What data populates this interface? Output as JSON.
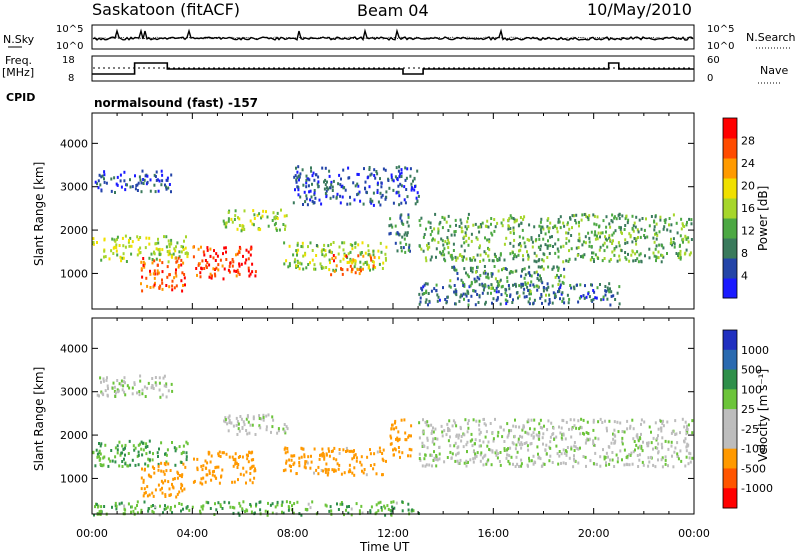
{
  "header": {
    "station": "Saskatoon (fitACF)",
    "beam": "Beam 04",
    "date": "10/May/2010"
  },
  "small_panels": {
    "nsky_label": "N.Sky",
    "nsky_ticks": [
      "10^5",
      "10^0"
    ],
    "nsearch_label": "N.Search",
    "nsearch_ticks": [
      "10^5",
      "10^0"
    ],
    "freq_label_1": "Freq.",
    "freq_label_2": "[MHz]",
    "freq_ticks": [
      "18",
      "8"
    ],
    "nave_label": "Nave",
    "nave_ticks": [
      "60",
      "0"
    ],
    "cpid_label": "CPID",
    "cpid_text": "normalsound (fast) -157"
  },
  "colors": {
    "power_scale": [
      "#1a1aff",
      "#2445a8",
      "#3a7a5c",
      "#4ca843",
      "#a6d62b",
      "#f0e000",
      "#ff9a00",
      "#ff4b00",
      "#ff0000"
    ],
    "velocity_scale": [
      "#2030c0",
      "#2a6ab0",
      "#2e8f4a",
      "#6cc43a",
      "#bdbdbd",
      "#bdbdbd",
      "#ff9900",
      "#ff5500",
      "#ff0000"
    ]
  },
  "chart_data": [
    {
      "type": "heatmap",
      "name": "power",
      "ylabel": "Slant Range [km]",
      "xlabel": "Time UT",
      "x_ticks": [
        "00:00",
        "04:00",
        "08:00",
        "12:00",
        "16:00",
        "20:00",
        "00:00"
      ],
      "x_range_hours": [
        0,
        24
      ],
      "y_ticks": [
        1000,
        2000,
        3000,
        4000
      ],
      "ylim": [
        180,
        4700
      ],
      "colorbar_label": "Power [dB]",
      "colorbar_ticks": [
        "4",
        "8",
        "12",
        "16",
        "20",
        "24",
        "28"
      ],
      "colorbar_range": [
        0,
        30
      ],
      "regions": [
        {
          "t": [
            0.0,
            3.8
          ],
          "r": [
            1300,
            1900
          ],
          "v": 15
        },
        {
          "t": [
            1.9,
            3.7
          ],
          "r": [
            600,
            1400
          ],
          "v": 26
        },
        {
          "t": [
            4.0,
            6.5
          ],
          "r": [
            900,
            1650
          ],
          "v": 28
        },
        {
          "t": [
            0.1,
            3.2
          ],
          "r": [
            2900,
            3400
          ],
          "v": 4
        },
        {
          "t": [
            5.2,
            7.8
          ],
          "r": [
            2000,
            2500
          ],
          "v": 15
        },
        {
          "t": [
            7.6,
            11.7
          ],
          "r": [
            1100,
            1750
          ],
          "v": 14
        },
        {
          "t": [
            9.4,
            11.3
          ],
          "r": [
            1000,
            1450
          ],
          "v": 24
        },
        {
          "t": [
            11.8,
            12.7
          ],
          "r": [
            1500,
            2400
          ],
          "v": 7
        },
        {
          "t": [
            13.0,
            23.9
          ],
          "r": [
            1300,
            2400
          ],
          "v": 11
        },
        {
          "t": [
            14.2,
            18.8
          ],
          "r": [
            500,
            1200
          ],
          "v": 9
        },
        {
          "t": [
            13.0,
            21.0
          ],
          "r": [
            300,
            800
          ],
          "v": 6
        },
        {
          "t": [
            8.0,
            13.0
          ],
          "r": [
            2600,
            3500
          ],
          "v": 4
        }
      ]
    },
    {
      "type": "heatmap",
      "name": "velocity",
      "ylabel": "Slant Range [km]",
      "xlabel": "Time UT",
      "x_ticks": [
        "00:00",
        "04:00",
        "08:00",
        "12:00",
        "16:00",
        "20:00",
        "00:00"
      ],
      "x_range_hours": [
        0,
        24
      ],
      "y_ticks": [
        1000,
        2000,
        3000,
        4000
      ],
      "ylim": [
        180,
        4700
      ],
      "colorbar_label": "Velocity [m s⁻¹]",
      "colorbar_ticks": [
        "1000",
        "500",
        "100",
        "25",
        "-25",
        "-100",
        "-500",
        "-1000"
      ],
      "regions": [
        {
          "t": [
            0.0,
            3.8
          ],
          "r": [
            1300,
            1900
          ],
          "v": 100
        },
        {
          "t": [
            1.9,
            3.7
          ],
          "r": [
            600,
            1400
          ],
          "v": -300
        },
        {
          "t": [
            4.0,
            6.5
          ],
          "r": [
            900,
            1650
          ],
          "v": -200
        },
        {
          "t": [
            0.1,
            3.2
          ],
          "r": [
            2900,
            3400
          ],
          "v": 0
        },
        {
          "t": [
            5.2,
            7.8
          ],
          "r": [
            2000,
            2500
          ],
          "v": 0
        },
        {
          "t": [
            7.6,
            11.7
          ],
          "r": [
            1100,
            1750
          ],
          "v": -150
        },
        {
          "t": [
            11.8,
            12.7
          ],
          "r": [
            1500,
            2400
          ],
          "v": -300
        },
        {
          "t": [
            13.0,
            23.9
          ],
          "r": [
            1300,
            2400
          ],
          "v": 0
        },
        {
          "t": [
            0.0,
            13.0
          ],
          "r": [
            180,
            500
          ],
          "v": 80
        }
      ]
    }
  ]
}
